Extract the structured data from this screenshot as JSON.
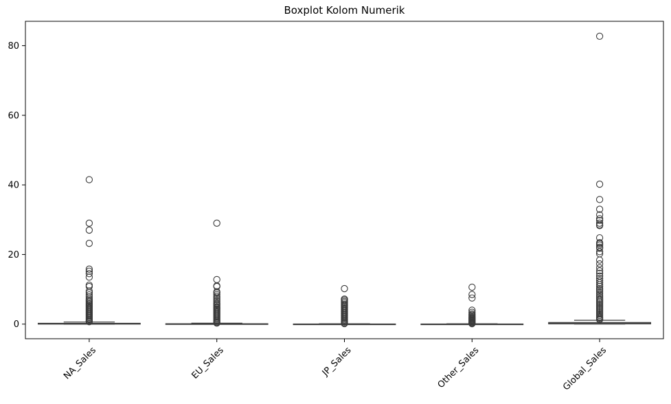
{
  "chart_data": {
    "type": "box",
    "title": "Boxplot Kolom Numerik",
    "xlabel": "",
    "ylabel": "",
    "ylim": [
      -4.2,
      87.0
    ],
    "yticks": [
      0,
      20,
      40,
      60,
      80
    ],
    "grid": false,
    "legend": "none",
    "box_color": "#3a3a3a",
    "categories": [
      "NA_Sales",
      "EU_Sales",
      "JP_Sales",
      "Other_Sales",
      "Global_Sales"
    ],
    "boxes": [
      {
        "name": "NA_Sales",
        "whisker_low": 0.0,
        "q1": 0.0,
        "median": 0.08,
        "q3": 0.24,
        "whisker_high": 0.6,
        "outliers": [
          41.5,
          29.0,
          27.0,
          23.2,
          15.8,
          15.2,
          14.5,
          13.5,
          11.2,
          10.8,
          9.5,
          9.0,
          8.4,
          7.8,
          7.2,
          6.8,
          6.5,
          6.1,
          5.8,
          5.5,
          5.2,
          4.9,
          4.6,
          4.3,
          4.0,
          3.7,
          3.4,
          3.1,
          2.8,
          2.5,
          2.2,
          1.9,
          1.6,
          1.3,
          1.0,
          0.8,
          0.7
        ]
      },
      {
        "name": "EU_Sales",
        "whisker_low": 0.0,
        "q1": 0.0,
        "median": 0.02,
        "q3": 0.11,
        "whisker_high": 0.27,
        "outliers": [
          29.0,
          12.8,
          11.0,
          10.8,
          9.3,
          9.0,
          8.5,
          8.0,
          7.5,
          7.0,
          6.5,
          6.0,
          5.7,
          5.4,
          5.0,
          4.7,
          4.4,
          4.1,
          3.8,
          3.5,
          3.2,
          2.9,
          2.6,
          2.3,
          2.0,
          1.7,
          1.4,
          1.1,
          0.8,
          0.5,
          0.3
        ]
      },
      {
        "name": "JP_Sales",
        "whisker_low": 0.0,
        "q1": 0.0,
        "median": 0.0,
        "q3": 0.04,
        "whisker_high": 0.1,
        "outliers": [
          10.2,
          7.2,
          6.9,
          6.5,
          6.1,
          5.7,
          5.4,
          5.1,
          4.8,
          4.5,
          4.2,
          3.9,
          3.6,
          3.3,
          3.0,
          2.7,
          2.4,
          2.1,
          1.8,
          1.5,
          1.2,
          0.9,
          0.6,
          0.3,
          0.15
        ]
      },
      {
        "name": "Other_Sales",
        "whisker_low": 0.0,
        "q1": 0.0,
        "median": 0.01,
        "q3": 0.04,
        "whisker_high": 0.1,
        "outliers": [
          10.6,
          8.5,
          7.5,
          4.0,
          3.4,
          2.9,
          2.6,
          2.3,
          2.0,
          1.8,
          1.6,
          1.4,
          1.2,
          1.0,
          0.8,
          0.6,
          0.4,
          0.2,
          0.12
        ]
      },
      {
        "name": "Global_Sales",
        "whisker_low": 0.01,
        "q1": 0.06,
        "median": 0.17,
        "q3": 0.47,
        "whisker_high": 1.1,
        "outliers": [
          82.7,
          40.2,
          35.8,
          33.0,
          31.4,
          30.3,
          29.8,
          29.0,
          28.5,
          28.3,
          24.8,
          23.4,
          23.1,
          22.7,
          22.1,
          21.8,
          20.8,
          20.2,
          18.4,
          17.3,
          16.2,
          15.3,
          14.6,
          13.8,
          13.1,
          12.5,
          11.9,
          11.3,
          10.8,
          10.2,
          9.8,
          9.3,
          8.8,
          8.3,
          7.8,
          7.3,
          6.9,
          6.5,
          6.1,
          5.7,
          5.3,
          4.9,
          4.5,
          4.1,
          3.7,
          3.3,
          2.9,
          2.5,
          2.1,
          1.8,
          1.5,
          1.3
        ]
      }
    ]
  }
}
